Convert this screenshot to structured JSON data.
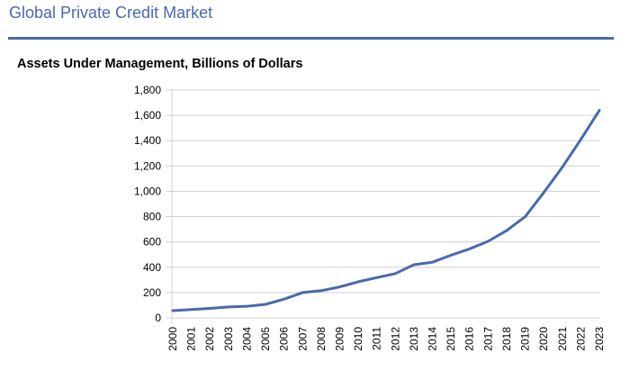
{
  "page": {
    "title": "Global Private Credit Market",
    "accent_color": "#4a68b0"
  },
  "chart_data": {
    "type": "line",
    "title": "Assets Under Management, Billions of Dollars",
    "xlabel": "",
    "ylabel": "",
    "ylim": [
      0,
      1800
    ],
    "yticks": [
      0,
      200,
      400,
      600,
      800,
      1000,
      1200,
      1400,
      1600,
      1800
    ],
    "ytick_labels": [
      "0",
      "200",
      "400",
      "600",
      "800",
      "1,000",
      "1,200",
      "1,400",
      "1,600",
      "1,800"
    ],
    "grid": true,
    "legend": "none",
    "categories": [
      "2000",
      "2001",
      "2002",
      "2003",
      "2004",
      "2005",
      "2006",
      "2007",
      "2008",
      "2009",
      "2010",
      "2011",
      "2012",
      "2013",
      "2014",
      "2015",
      "2016",
      "2017",
      "2018",
      "2019",
      "2020",
      "2021",
      "2022",
      "2023"
    ],
    "series": [
      {
        "name": "Assets Under Management",
        "color": "#4a68b0",
        "values": [
          57,
          66,
          75,
          86,
          92,
          107,
          148,
          200,
          215,
          245,
          285,
          318,
          350,
          420,
          440,
          495,
          545,
          605,
          690,
          800,
          990,
          1190,
          1410,
          1640
        ]
      }
    ]
  }
}
